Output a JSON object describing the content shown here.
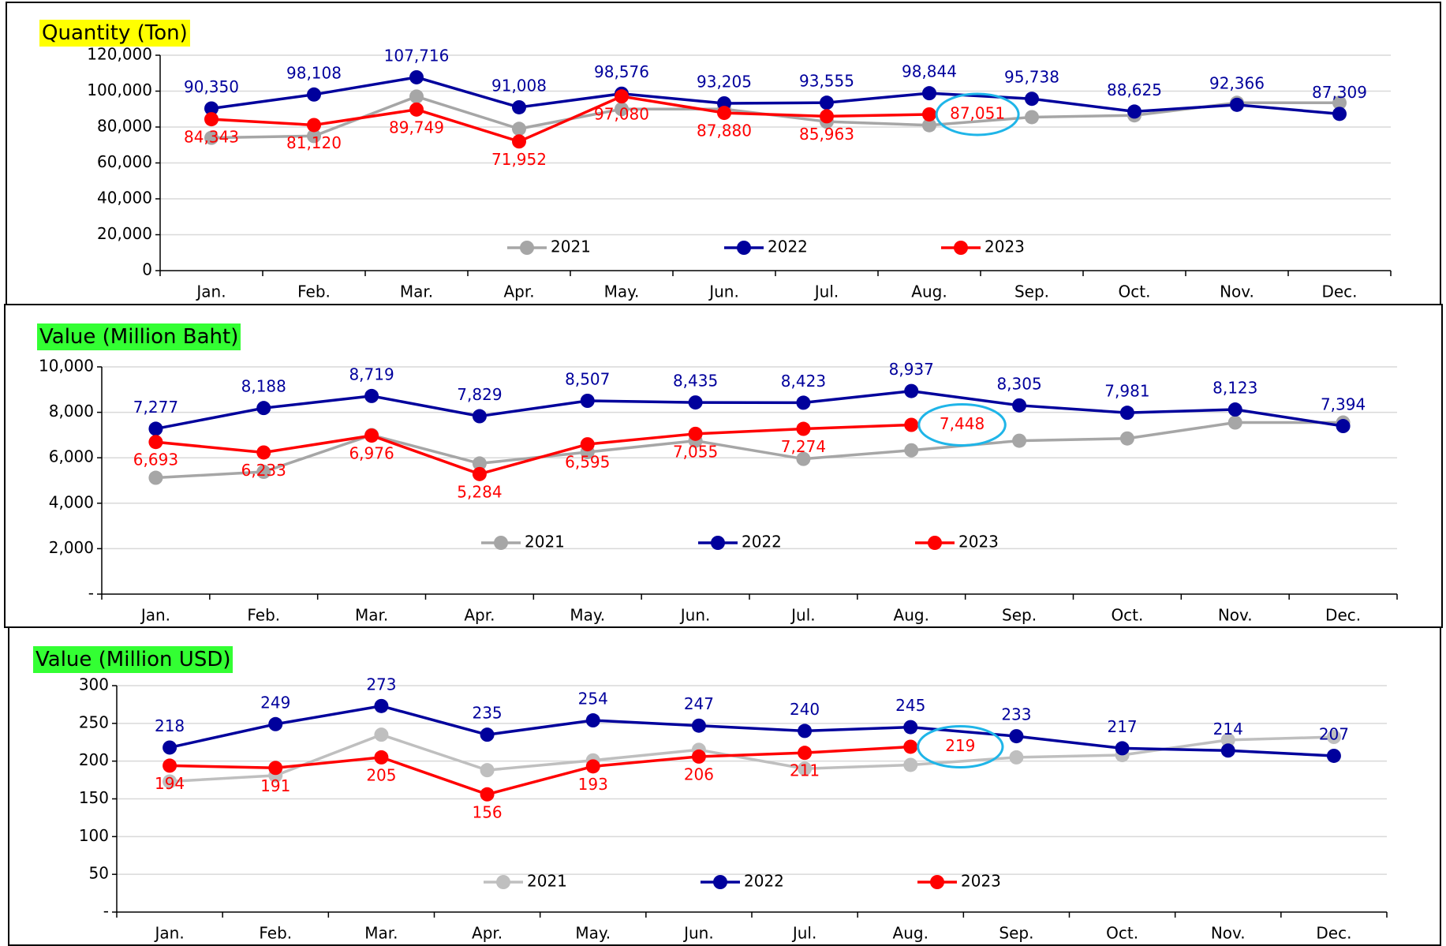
{
  "chart_data": [
    {
      "type": "line",
      "title": "Quantity (Ton)",
      "categories": [
        "Jan.",
        "Feb.",
        "Mar.",
        "Apr.",
        "May.",
        "Jun.",
        "Jul.",
        "Aug.",
        "Sep.",
        "Oct.",
        "Nov.",
        "Dec."
      ],
      "ylim": [
        0,
        120000
      ],
      "yticks": [
        0,
        {
          "value": 20000,
          "label": "20,000"
        },
        {
          "value": 40000,
          "label": "40,000"
        },
        {
          "value": 60000,
          "label": "60,000"
        },
        {
          "value": 80000,
          "label": "80,000"
        },
        {
          "value": 100000,
          "label": "100,000"
        },
        {
          "value": 120000,
          "label": "120,000"
        }
      ],
      "grid": true,
      "legend": "lower center",
      "series": [
        {
          "name": "2021",
          "color": "#a6a6a6",
          "show_labels": false,
          "values": [
            74000,
            75000,
            97000,
            79000,
            90000,
            90000,
            83000,
            81000,
            85500,
            86500,
            93500,
            93500
          ]
        },
        {
          "name": "2022",
          "color": "#00009c",
          "show_labels": true,
          "label_position": "above",
          "values": [
            90350,
            98108,
            107716,
            91008,
            98576,
            93205,
            93555,
            98844,
            95738,
            88625,
            92366,
            87309
          ],
          "value_labels": [
            "90,350",
            "98,108",
            "107,716",
            "91,008",
            "98,576",
            "93,205",
            "93,555",
            "98,844",
            "95,738",
            "88,625",
            "92,366",
            "87,309"
          ]
        },
        {
          "name": "2023",
          "color": "#ff0000",
          "show_labels": true,
          "label_position": "below",
          "values": [
            84343,
            81120,
            89749,
            71952,
            97080,
            87880,
            85963,
            87051,
            null,
            null,
            null,
            null
          ],
          "value_labels": [
            "84,343",
            "81,120",
            "89,749",
            "71,952",
            "97,080",
            "87,880",
            "85,963",
            "87,051",
            null,
            null,
            null,
            null
          ]
        }
      ]
    },
    {
      "type": "line",
      "title": "Value (Million Baht)",
      "categories": [
        "Jan.",
        "Feb.",
        "Mar.",
        "Apr.",
        "May.",
        "Jun.",
        "Jul.",
        "Aug.",
        "Sep.",
        "Oct.",
        "Nov.",
        "Dec."
      ],
      "ylim": [
        0,
        10000
      ],
      "yticks": [
        {
          "value": 0,
          "label": "-"
        },
        {
          "value": 2000,
          "label": "2,000"
        },
        {
          "value": 4000,
          "label": "4,000"
        },
        {
          "value": 6000,
          "label": "6,000"
        },
        {
          "value": 8000,
          "label": "8,000"
        },
        {
          "value": 10000,
          "label": "10,000"
        }
      ],
      "grid": true,
      "legend": "lower center",
      "series": [
        {
          "name": "2021",
          "color": "#a6a6a6",
          "show_labels": false,
          "values": [
            5120,
            5380,
            7000,
            5750,
            6250,
            6750,
            5950,
            6330,
            6750,
            6850,
            7550,
            7550
          ]
        },
        {
          "name": "2022",
          "color": "#00009c",
          "show_labels": true,
          "label_position": "above",
          "values": [
            7277,
            8188,
            8719,
            7829,
            8507,
            8435,
            8423,
            8937,
            8305,
            7981,
            8123,
            7394
          ],
          "value_labels": [
            "7,277",
            "8,188",
            "8,719",
            "7,829",
            "8,507",
            "8,435",
            "8,423",
            "8,937",
            "8,305",
            "7,981",
            "8,123",
            "7,394"
          ]
        },
        {
          "name": "2023",
          "color": "#ff0000",
          "show_labels": true,
          "label_position": "below",
          "values": [
            6693,
            6233,
            6976,
            5284,
            6595,
            7055,
            7274,
            7448,
            null,
            null,
            null,
            null
          ],
          "value_labels": [
            "6,693",
            "6,233",
            "6,976",
            "5,284",
            "6,595",
            "7,055",
            "7,274",
            "7,448",
            null,
            null,
            null,
            null
          ]
        }
      ]
    },
    {
      "type": "line",
      "title": "Value (Million USD)",
      "categories": [
        "Jan.",
        "Feb.",
        "Mar.",
        "Apr.",
        "May.",
        "Jun.",
        "Jul.",
        "Aug.",
        "Sep.",
        "Oct.",
        "Nov.",
        "Dec."
      ],
      "ylim": [
        0,
        300
      ],
      "yticks": [
        {
          "value": 0,
          "label": "-"
        },
        50,
        100,
        150,
        200,
        250,
        300
      ],
      "grid": true,
      "legend": "lower center",
      "series": [
        {
          "name": "2021",
          "color": "#bfbfbf",
          "show_labels": false,
          "values": [
            173,
            181,
            235,
            188,
            201,
            215,
            190,
            195,
            205,
            208,
            228,
            232
          ]
        },
        {
          "name": "2022",
          "color": "#00009c",
          "show_labels": true,
          "label_position": "above",
          "values": [
            218,
            249,
            273,
            235,
            254,
            247,
            240,
            245,
            233,
            217,
            214,
            207
          ]
        },
        {
          "name": "2023",
          "color": "#ff0000",
          "show_labels": true,
          "label_position": "below",
          "values": [
            194,
            191,
            205,
            156,
            193,
            206,
            211,
            219,
            null,
            null,
            null,
            null
          ]
        }
      ]
    }
  ]
}
